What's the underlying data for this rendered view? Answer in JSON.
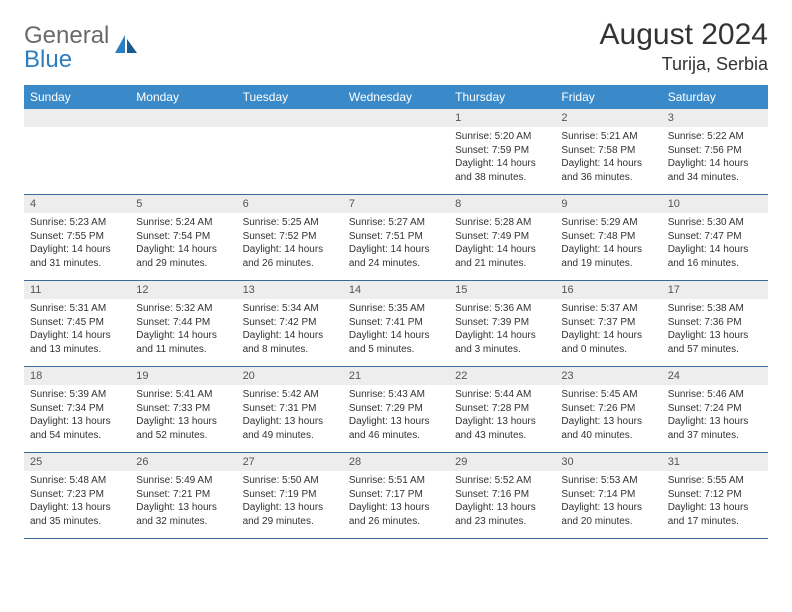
{
  "logo": {
    "general": "General",
    "blue": "Blue"
  },
  "title": "August 2024",
  "location": "Turija, Serbia",
  "colors": {
    "header_bg": "#3a8ac9",
    "header_text": "#ffffff",
    "daynum_bg": "#ededed",
    "daynum_text": "#555555",
    "body_text": "#333333",
    "logo_gray": "#6a6a6a",
    "logo_blue": "#2d7ebf",
    "divider": "#3a6a9a"
  },
  "day_headers": [
    "Sunday",
    "Monday",
    "Tuesday",
    "Wednesday",
    "Thursday",
    "Friday",
    "Saturday"
  ],
  "weeks": [
    [
      null,
      null,
      null,
      null,
      {
        "d": "1",
        "sr": "5:20 AM",
        "ss": "7:59 PM",
        "dl": "14 hours and 38 minutes."
      },
      {
        "d": "2",
        "sr": "5:21 AM",
        "ss": "7:58 PM",
        "dl": "14 hours and 36 minutes."
      },
      {
        "d": "3",
        "sr": "5:22 AM",
        "ss": "7:56 PM",
        "dl": "14 hours and 34 minutes."
      }
    ],
    [
      {
        "d": "4",
        "sr": "5:23 AM",
        "ss": "7:55 PM",
        "dl": "14 hours and 31 minutes."
      },
      {
        "d": "5",
        "sr": "5:24 AM",
        "ss": "7:54 PM",
        "dl": "14 hours and 29 minutes."
      },
      {
        "d": "6",
        "sr": "5:25 AM",
        "ss": "7:52 PM",
        "dl": "14 hours and 26 minutes."
      },
      {
        "d": "7",
        "sr": "5:27 AM",
        "ss": "7:51 PM",
        "dl": "14 hours and 24 minutes."
      },
      {
        "d": "8",
        "sr": "5:28 AM",
        "ss": "7:49 PM",
        "dl": "14 hours and 21 minutes."
      },
      {
        "d": "9",
        "sr": "5:29 AM",
        "ss": "7:48 PM",
        "dl": "14 hours and 19 minutes."
      },
      {
        "d": "10",
        "sr": "5:30 AM",
        "ss": "7:47 PM",
        "dl": "14 hours and 16 minutes."
      }
    ],
    [
      {
        "d": "11",
        "sr": "5:31 AM",
        "ss": "7:45 PM",
        "dl": "14 hours and 13 minutes."
      },
      {
        "d": "12",
        "sr": "5:32 AM",
        "ss": "7:44 PM",
        "dl": "14 hours and 11 minutes."
      },
      {
        "d": "13",
        "sr": "5:34 AM",
        "ss": "7:42 PM",
        "dl": "14 hours and 8 minutes."
      },
      {
        "d": "14",
        "sr": "5:35 AM",
        "ss": "7:41 PM",
        "dl": "14 hours and 5 minutes."
      },
      {
        "d": "15",
        "sr": "5:36 AM",
        "ss": "7:39 PM",
        "dl": "14 hours and 3 minutes."
      },
      {
        "d": "16",
        "sr": "5:37 AM",
        "ss": "7:37 PM",
        "dl": "14 hours and 0 minutes."
      },
      {
        "d": "17",
        "sr": "5:38 AM",
        "ss": "7:36 PM",
        "dl": "13 hours and 57 minutes."
      }
    ],
    [
      {
        "d": "18",
        "sr": "5:39 AM",
        "ss": "7:34 PM",
        "dl": "13 hours and 54 minutes."
      },
      {
        "d": "19",
        "sr": "5:41 AM",
        "ss": "7:33 PM",
        "dl": "13 hours and 52 minutes."
      },
      {
        "d": "20",
        "sr": "5:42 AM",
        "ss": "7:31 PM",
        "dl": "13 hours and 49 minutes."
      },
      {
        "d": "21",
        "sr": "5:43 AM",
        "ss": "7:29 PM",
        "dl": "13 hours and 46 minutes."
      },
      {
        "d": "22",
        "sr": "5:44 AM",
        "ss": "7:28 PM",
        "dl": "13 hours and 43 minutes."
      },
      {
        "d": "23",
        "sr": "5:45 AM",
        "ss": "7:26 PM",
        "dl": "13 hours and 40 minutes."
      },
      {
        "d": "24",
        "sr": "5:46 AM",
        "ss": "7:24 PM",
        "dl": "13 hours and 37 minutes."
      }
    ],
    [
      {
        "d": "25",
        "sr": "5:48 AM",
        "ss": "7:23 PM",
        "dl": "13 hours and 35 minutes."
      },
      {
        "d": "26",
        "sr": "5:49 AM",
        "ss": "7:21 PM",
        "dl": "13 hours and 32 minutes."
      },
      {
        "d": "27",
        "sr": "5:50 AM",
        "ss": "7:19 PM",
        "dl": "13 hours and 29 minutes."
      },
      {
        "d": "28",
        "sr": "5:51 AM",
        "ss": "7:17 PM",
        "dl": "13 hours and 26 minutes."
      },
      {
        "d": "29",
        "sr": "5:52 AM",
        "ss": "7:16 PM",
        "dl": "13 hours and 23 minutes."
      },
      {
        "d": "30",
        "sr": "5:53 AM",
        "ss": "7:14 PM",
        "dl": "13 hours and 20 minutes."
      },
      {
        "d": "31",
        "sr": "5:55 AM",
        "ss": "7:12 PM",
        "dl": "13 hours and 17 minutes."
      }
    ]
  ],
  "labels": {
    "sunrise": "Sunrise: ",
    "sunset": "Sunset: ",
    "daylight": "Daylight: "
  }
}
